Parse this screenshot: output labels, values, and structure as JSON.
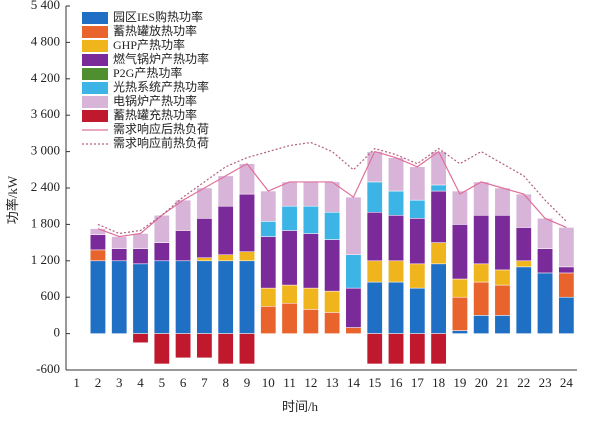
{
  "chart_data": {
    "type": "stacked-bar-line",
    "x_label": "时间/h",
    "y_label": "功率/kW",
    "categories": [
      "1",
      "2",
      "3",
      "4",
      "5",
      "6",
      "7",
      "8",
      "9",
      "10",
      "11",
      "12",
      "13",
      "14",
      "15",
      "16",
      "17",
      "18",
      "19",
      "20",
      "21",
      "22",
      "23",
      "24"
    ],
    "ylim": [
      -600,
      5400
    ],
    "yticks": [
      -600,
      0,
      600,
      {
        "value": 1200,
        "label": "1 200"
      },
      {
        "value": 1800,
        "label": "1 800"
      },
      {
        "value": 2400,
        "label": "2 400"
      },
      {
        "value": 3000,
        "label": "3 000"
      },
      {
        "value": 3600,
        "label": "3 600"
      },
      {
        "value": 4200,
        "label": "4 200"
      },
      {
        "value": 4800,
        "label": "4 800"
      },
      {
        "value": 5400,
        "label": "5 400"
      }
    ],
    "series": [
      {
        "name": "园区IES购热功率",
        "color": "#1f6fc4",
        "values": [
          null,
          1200,
          1200,
          1150,
          1200,
          1200,
          1200,
          1200,
          1200,
          0,
          0,
          0,
          0,
          0,
          850,
          850,
          750,
          1150,
          50,
          300,
          300,
          1100,
          1000,
          600
        ]
      },
      {
        "name": "蓄热罐放热功率",
        "color": "#e8642c",
        "values": [
          null,
          180,
          0,
          0,
          0,
          0,
          0,
          0,
          0,
          450,
          500,
          400,
          350,
          100,
          0,
          0,
          0,
          0,
          550,
          550,
          500,
          0,
          0,
          400
        ]
      },
      {
        "name": "GHP产热功率",
        "color": "#f0b41c",
        "values": [
          null,
          0,
          0,
          0,
          0,
          0,
          50,
          100,
          150,
          300,
          300,
          350,
          350,
          0,
          350,
          350,
          400,
          350,
          300,
          300,
          250,
          100,
          0,
          0
        ]
      },
      {
        "name": "燃气锅炉产热功率",
        "color": "#7b2a9a",
        "values": [
          null,
          250,
          200,
          250,
          300,
          500,
          650,
          800,
          950,
          850,
          900,
          900,
          850,
          650,
          800,
          750,
          750,
          850,
          900,
          800,
          900,
          550,
          400,
          100
        ]
      },
      {
        "name": "P2G产热功率",
        "color": "#4f8f2f",
        "values": [
          null,
          0,
          0,
          0,
          0,
          0,
          0,
          0,
          0,
          0,
          0,
          0,
          0,
          0,
          0,
          0,
          0,
          0,
          0,
          0,
          0,
          0,
          0,
          0
        ]
      },
      {
        "name": "光热系统产热功率",
        "color": "#3cb4e6",
        "values": [
          null,
          0,
          0,
          0,
          0,
          0,
          0,
          0,
          0,
          250,
          400,
          450,
          450,
          550,
          500,
          400,
          300,
          100,
          0,
          0,
          0,
          0,
          0,
          0
        ]
      },
      {
        "name": "电锅炉产热功率",
        "color": "#d8b4d8",
        "values": [
          null,
          100,
          200,
          250,
          450,
          500,
          500,
          500,
          500,
          500,
          400,
          400,
          500,
          950,
          500,
          550,
          550,
          550,
          550,
          550,
          450,
          550,
          500,
          650
        ]
      },
      {
        "name": "蓄热罐充热功率",
        "color": "#c0182c",
        "values": [
          null,
          0,
          0,
          -150,
          -500,
          -400,
          -400,
          -500,
          -500,
          0,
          0,
          0,
          0,
          0,
          -500,
          -500,
          -500,
          -500,
          0,
          0,
          0,
          0,
          0,
          0
        ]
      }
    ],
    "lines": [
      {
        "name": "需求响应后热负荷",
        "color": "#e0709a",
        "dash": "none",
        "values": [
          null,
          1730,
          1600,
          1650,
          1950,
          2200,
          2400,
          2600,
          2800,
          2350,
          2500,
          2500,
          2500,
          2250,
          3000,
          2900,
          2750,
          3000,
          2300,
          2500,
          2400,
          2300,
          1900,
          1750
        ]
      },
      {
        "name": "需求响应前热负荷",
        "color": "#b06080",
        "dash": "2,2",
        "values": [
          null,
          1800,
          1650,
          1700,
          1950,
          2250,
          2500,
          2750,
          2900,
          3000,
          3100,
          3150,
          3000,
          2700,
          3050,
          2950,
          2800,
          3050,
          2800,
          3000,
          2800,
          2600,
          2200,
          1850
        ]
      }
    ]
  }
}
